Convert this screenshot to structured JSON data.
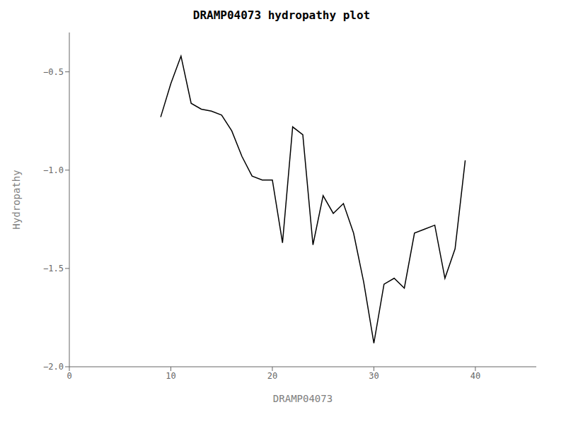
{
  "chart_data": {
    "type": "line",
    "title": "DRAMP04073 hydropathy plot",
    "xlabel": "DRAMP04073",
    "ylabel": "Hydropathy",
    "xlim": [
      0,
      46
    ],
    "ylim": [
      -2.0,
      -0.3
    ],
    "xticks": [
      0,
      10,
      20,
      30,
      40
    ],
    "yticks": [
      {
        "value": -2.0,
        "label": "−2.0"
      },
      {
        "value": -1.5,
        "label": "−1.5"
      },
      {
        "value": -1.0,
        "label": "−1.0"
      },
      {
        "value": -0.5,
        "label": "−0.5"
      }
    ],
    "grid": false,
    "color": "black",
    "x": [
      9,
      10,
      11,
      12,
      13,
      14,
      15,
      16,
      17,
      18,
      19,
      20,
      21,
      22,
      23,
      24,
      25,
      26,
      27,
      28,
      29,
      30,
      31,
      32,
      33,
      34,
      35,
      36,
      37,
      38,
      39
    ],
    "values": [
      -0.73,
      -0.56,
      -0.42,
      -0.66,
      -0.69,
      -0.7,
      -0.72,
      -0.8,
      -0.93,
      -1.03,
      -1.05,
      -1.05,
      -1.37,
      -0.78,
      -0.82,
      -1.38,
      -1.13,
      -1.22,
      -1.17,
      -1.32,
      -1.57,
      -1.88,
      -1.58,
      -1.55,
      -1.6,
      -1.32,
      -1.3,
      -1.28,
      -1.55,
      -1.4,
      -0.95
    ]
  }
}
